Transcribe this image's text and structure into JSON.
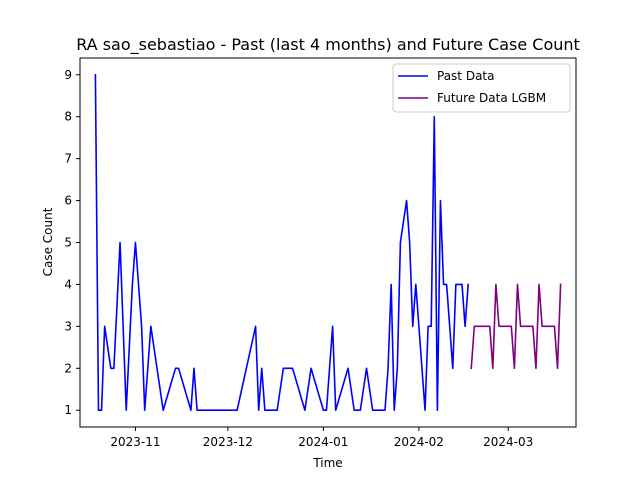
{
  "chart_data": {
    "type": "line",
    "title": "RA sao_sebastiao - Past (last 4 months) and Future Case Count",
    "xlabel": "Time",
    "ylabel": "Case Count",
    "xlim": [
      "2023-10-14",
      "2024-03-23"
    ],
    "ylim": [
      0.6,
      9.4
    ],
    "xticks": [
      {
        "date": "2023-11-01",
        "label": "2023-11"
      },
      {
        "date": "2023-12-01",
        "label": "2023-12"
      },
      {
        "date": "2024-01-01",
        "label": "2024-01"
      },
      {
        "date": "2024-02-01",
        "label": "2024-02"
      },
      {
        "date": "2024-03-01",
        "label": "2024-03"
      }
    ],
    "yticks": [
      1,
      2,
      3,
      4,
      5,
      6,
      7,
      8,
      9
    ],
    "grid": false,
    "legend": "upper-right",
    "series": [
      {
        "name": "Past Data",
        "color": "#0000ff",
        "points": [
          [
            "2023-10-19",
            9
          ],
          [
            "2023-10-20",
            1
          ],
          [
            "2023-10-21",
            1
          ],
          [
            "2023-10-22",
            3
          ],
          [
            "2023-10-24",
            2
          ],
          [
            "2023-10-25",
            2
          ],
          [
            "2023-10-27",
            5
          ],
          [
            "2023-10-29",
            1
          ],
          [
            "2023-10-31",
            4
          ],
          [
            "2023-11-01",
            5
          ],
          [
            "2023-11-03",
            3
          ],
          [
            "2023-11-04",
            1
          ],
          [
            "2023-11-06",
            3
          ],
          [
            "2023-11-10",
            1
          ],
          [
            "2023-11-14",
            2
          ],
          [
            "2023-11-15",
            2
          ],
          [
            "2023-11-19",
            1
          ],
          [
            "2023-11-20",
            2
          ],
          [
            "2023-11-21",
            1
          ],
          [
            "2023-12-04",
            1
          ],
          [
            "2023-12-10",
            3
          ],
          [
            "2023-12-11",
            1
          ],
          [
            "2023-12-12",
            2
          ],
          [
            "2023-12-13",
            1
          ],
          [
            "2023-12-17",
            1
          ],
          [
            "2023-12-19",
            2
          ],
          [
            "2023-12-22",
            2
          ],
          [
            "2023-12-26",
            1
          ],
          [
            "2023-12-28",
            2
          ],
          [
            "2024-01-01",
            1
          ],
          [
            "2024-01-02",
            1
          ],
          [
            "2024-01-04",
            3
          ],
          [
            "2024-01-05",
            1
          ],
          [
            "2024-01-09",
            2
          ],
          [
            "2024-01-11",
            1
          ],
          [
            "2024-01-13",
            1
          ],
          [
            "2024-01-15",
            2
          ],
          [
            "2024-01-17",
            1
          ],
          [
            "2024-01-21",
            1
          ],
          [
            "2024-01-22",
            2
          ],
          [
            "2024-01-23",
            4
          ],
          [
            "2024-01-24",
            1
          ],
          [
            "2024-01-25",
            2
          ],
          [
            "2024-01-26",
            5
          ],
          [
            "2024-01-28",
            6
          ],
          [
            "2024-01-29",
            5
          ],
          [
            "2024-01-30",
            3
          ],
          [
            "2024-01-31",
            4
          ],
          [
            "2024-02-01",
            3
          ],
          [
            "2024-02-03",
            1
          ],
          [
            "2024-02-04",
            3
          ],
          [
            "2024-02-05",
            3
          ],
          [
            "2024-02-06",
            8
          ],
          [
            "2024-02-07",
            1
          ],
          [
            "2024-02-08",
            6
          ],
          [
            "2024-02-09",
            4
          ],
          [
            "2024-02-10",
            4
          ],
          [
            "2024-02-12",
            2
          ],
          [
            "2024-02-13",
            4
          ],
          [
            "2024-02-15",
            4
          ],
          [
            "2024-02-16",
            3
          ],
          [
            "2024-02-17",
            4
          ]
        ]
      },
      {
        "name": "Future Data LGBM",
        "color": "#800080",
        "points": [
          [
            "2024-02-18",
            2
          ],
          [
            "2024-02-19",
            3
          ],
          [
            "2024-02-20",
            3
          ],
          [
            "2024-02-21",
            3
          ],
          [
            "2024-02-22",
            3
          ],
          [
            "2024-02-23",
            3
          ],
          [
            "2024-02-24",
            3
          ],
          [
            "2024-02-25",
            2
          ],
          [
            "2024-02-26",
            4
          ],
          [
            "2024-02-27",
            3
          ],
          [
            "2024-02-28",
            3
          ],
          [
            "2024-02-29",
            3
          ],
          [
            "2024-03-01",
            3
          ],
          [
            "2024-03-02",
            3
          ],
          [
            "2024-03-03",
            2
          ],
          [
            "2024-03-04",
            4
          ],
          [
            "2024-03-05",
            3
          ],
          [
            "2024-03-06",
            3
          ],
          [
            "2024-03-07",
            3
          ],
          [
            "2024-03-08",
            3
          ],
          [
            "2024-03-09",
            3
          ],
          [
            "2024-03-10",
            2
          ],
          [
            "2024-03-11",
            4
          ],
          [
            "2024-03-12",
            3
          ],
          [
            "2024-03-13",
            3
          ],
          [
            "2024-03-14",
            3
          ],
          [
            "2024-03-15",
            3
          ],
          [
            "2024-03-16",
            3
          ],
          [
            "2024-03-17",
            2
          ],
          [
            "2024-03-18",
            4
          ]
        ]
      }
    ]
  }
}
